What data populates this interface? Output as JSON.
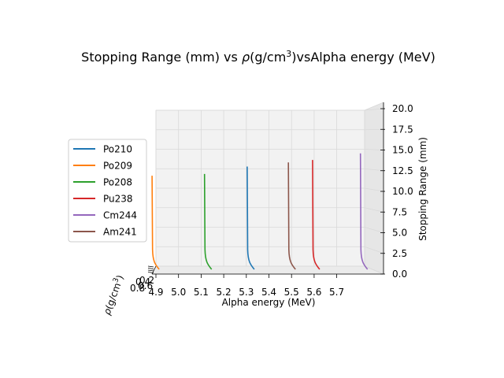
{
  "chart_data": {
    "type": "line",
    "projection": "3d",
    "title_parts": [
      "Stopping Range (mm) vs ",
      "ρ",
      "(g/cm",
      "3",
      ")vsAlpha energy (MeV)"
    ],
    "x_axis": {
      "label": "Alpha energy (MeV)",
      "ticks": [
        "4.9",
        "5.0",
        "5.1",
        "5.2",
        "5.3",
        "5.4",
        "5.5",
        "5.6",
        "5.7"
      ],
      "range": [
        4.9,
        5.8
      ]
    },
    "y_axis": {
      "label_parts": [
        "ρ",
        "(g/cm",
        "3",
        ")"
      ],
      "ticks": [
        "0.8",
        "0.6",
        "0.4",
        "0.2"
      ]
    },
    "z_axis": {
      "label": "Stopping Range (mm)",
      "ticks": [
        "0.0",
        "2.5",
        "5.0",
        "7.5",
        "10.0",
        "12.5",
        "15.0",
        "17.5",
        "20.0"
      ],
      "range": [
        0,
        20
      ]
    },
    "grid": true,
    "legend_position": "left",
    "series": [
      {
        "name": "Po210",
        "color": "#1f77b4",
        "energy": 5.304,
        "max_range": 13.0
      },
      {
        "name": "Po209",
        "color": "#ff7f0e",
        "energy": 4.883,
        "max_range": 11.9
      },
      {
        "name": "Po208",
        "color": "#2ca02c",
        "energy": 5.115,
        "max_range": 12.1
      },
      {
        "name": "Pu238",
        "color": "#d62728",
        "energy": 5.593,
        "max_range": 13.8
      },
      {
        "name": "Cm244",
        "color": "#9467bd",
        "energy": 5.805,
        "max_range": 14.6
      },
      {
        "name": "Am241",
        "color": "#8c564b",
        "energy": 5.486,
        "max_range": 13.5
      }
    ]
  }
}
